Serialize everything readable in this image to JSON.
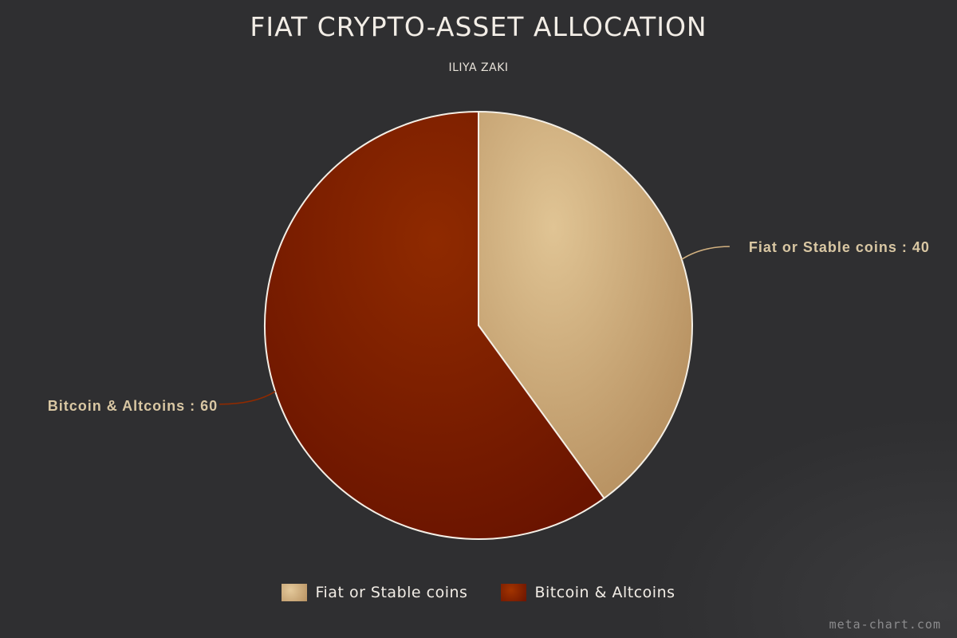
{
  "chart_data": {
    "type": "pie",
    "title": "FIAT CRYPTO-ASSET ALLOCATION",
    "subtitle": "ILIYA ZAKI",
    "categories": [
      "Fiat or Stable coins",
      "Bitcoin & Altcoins"
    ],
    "values": [
      40,
      60
    ],
    "data_labels": [
      "Fiat or Stable coins : 40",
      "Bitcoin & Altcoins : 60"
    ],
    "colors": [
      "#d2b180",
      "#7f1e00"
    ],
    "legend_position": "bottom-center",
    "start_angle_deg": 0,
    "direction": "clockwise"
  },
  "legend": {
    "items": [
      {
        "label": "Fiat or Stable coins",
        "color": "#d2b180"
      },
      {
        "label": "Bitcoin & Altcoins",
        "color": "#7f1e00"
      }
    ]
  },
  "watermark": "meta-chart.com",
  "colors": {
    "background": "#2f2f31",
    "text": "#f2ede6",
    "label_text": "#d9c7a3",
    "slice_border": "#f4efe6"
  }
}
